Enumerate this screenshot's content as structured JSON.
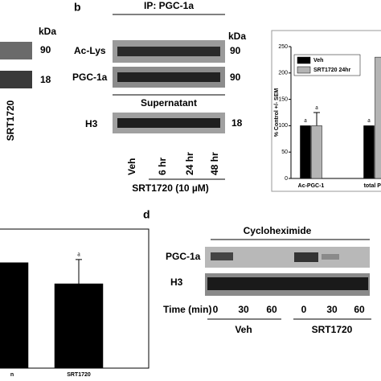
{
  "panel_a": {
    "kda": "kDa",
    "mw": [
      "90",
      "18"
    ],
    "lane": "SRT1720"
  },
  "panel_b": {
    "letter": "b",
    "ip": "IP: PGC-1a",
    "kda": "kDa",
    "rows": [
      {
        "label": "Ac-Lys",
        "mw": "90"
      },
      {
        "label": "PGC-1a",
        "mw": "90"
      }
    ],
    "supernatant": "Supernatant",
    "h3": {
      "label": "H3",
      "mw": "18"
    },
    "lanes": [
      "Veh",
      "6 hr",
      "24 hr",
      "48 hr"
    ],
    "treatment": "SRT1720 (10 µM)"
  },
  "panel_d": {
    "letter": "d",
    "title": "Cycloheximide",
    "rows": [
      "PGC-1a",
      "H3"
    ],
    "time_label": "Time (min)",
    "times": [
      "0",
      "30",
      "60",
      "0",
      "30",
      "60"
    ],
    "groups": [
      "Veh",
      "SRT1720"
    ]
  },
  "chart_data": [
    {
      "type": "bar",
      "ylabel": "% Control +/- SEM",
      "ylim": [
        0,
        250
      ],
      "yticks": [
        0,
        50,
        100,
        150,
        200,
        250
      ],
      "categories": [
        "Ac-PGC-1",
        "total PG"
      ],
      "series": [
        {
          "name": "Veh",
          "color": "#000000",
          "values": [
            100,
            100
          ],
          "letters": [
            "a",
            "a"
          ]
        },
        {
          "name": "SRT1720 24hr",
          "color": "#b4b4b4",
          "values": [
            100,
            230
          ],
          "errors": [
            25,
            null
          ],
          "letters": [
            "a",
            null
          ]
        }
      ]
    },
    {
      "type": "bar",
      "ylim": [
        0,
        125
      ],
      "categories": [
        "n",
        "SRT1720"
      ],
      "series": [
        {
          "color": "#000000",
          "values": [
            100,
            80
          ],
          "errors": [
            null,
            23
          ],
          "letters": [
            null,
            "a"
          ]
        }
      ]
    }
  ]
}
